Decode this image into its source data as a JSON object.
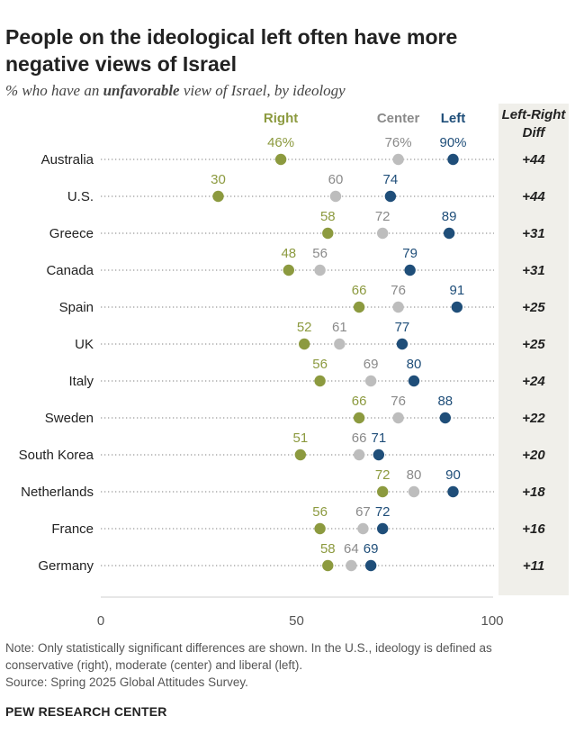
{
  "title": "People on the ideological left often have more negative views of Israel",
  "subtitle_prefix": "% who have an ",
  "subtitle_emph": "unfavorable",
  "subtitle_suffix": " view of Israel, by ideology",
  "diff_header_line1": "Left-Right",
  "diff_header_line2": "Diff",
  "note_line1": "Note: Only statistically significant differences are shown. In the U.S., ideology is defined as",
  "note_line2": "conservative (right), moderate (center) and liberal (left).",
  "source": "Source: Spring 2025 Global Attitudes Survey.",
  "logo": "PEW RESEARCH CENTER",
  "colors": {
    "right": "#8c9a3f",
    "center": "#bdbdbd",
    "left": "#1f4e79",
    "center_label": "#8a8a8a"
  },
  "chart_data": {
    "type": "scatter",
    "subtype": "dot-plot",
    "xlim": [
      0,
      100
    ],
    "xticks": [
      "0",
      "50",
      "100"
    ],
    "grid": false,
    "series": [
      {
        "name": "Right",
        "key": "right"
      },
      {
        "name": "Center",
        "key": "center"
      },
      {
        "name": "Left",
        "key": "left"
      }
    ],
    "rows": [
      {
        "country": "Australia",
        "right": 46,
        "center": 76,
        "left": 90,
        "right_label": "46%",
        "center_label": "76%",
        "left_label": "90%",
        "diff": "+44"
      },
      {
        "country": "U.S.",
        "right": 30,
        "center": 60,
        "left": 74,
        "right_label": "30",
        "center_label": "60",
        "left_label": "74",
        "diff": "+44"
      },
      {
        "country": "Greece",
        "right": 58,
        "center": 72,
        "left": 89,
        "right_label": "58",
        "center_label": "72",
        "left_label": "89",
        "diff": "+31"
      },
      {
        "country": "Canada",
        "right": 48,
        "center": 56,
        "left": 79,
        "right_label": "48",
        "center_label": "56",
        "left_label": "79",
        "diff": "+31"
      },
      {
        "country": "Spain",
        "right": 66,
        "center": 76,
        "left": 91,
        "right_label": "66",
        "center_label": "76",
        "left_label": "91",
        "diff": "+25"
      },
      {
        "country": "UK",
        "right": 52,
        "center": 61,
        "left": 77,
        "right_label": "52",
        "center_label": "61",
        "left_label": "77",
        "diff": "+25"
      },
      {
        "country": "Italy",
        "right": 56,
        "center": 69,
        "left": 80,
        "right_label": "56",
        "center_label": "69",
        "left_label": "80",
        "diff": "+24"
      },
      {
        "country": "Sweden",
        "right": 66,
        "center": 76,
        "left": 88,
        "right_label": "66",
        "center_label": "76",
        "left_label": "88",
        "diff": "+22"
      },
      {
        "country": "South Korea",
        "right": 51,
        "center": 66,
        "left": 71,
        "right_label": "51",
        "center_label": "66",
        "left_label": "71",
        "diff": "+20"
      },
      {
        "country": "Netherlands",
        "right": 72,
        "center": 80,
        "left": 90,
        "right_label": "72",
        "center_label": "80",
        "left_label": "90",
        "diff": "+18"
      },
      {
        "country": "France",
        "right": 56,
        "center": 67,
        "left": 72,
        "right_label": "56",
        "center_label": "67",
        "left_label": "72",
        "diff": "+16"
      },
      {
        "country": "Germany",
        "right": 58,
        "center": 64,
        "left": 69,
        "right_label": "58",
        "center_label": "64",
        "left_label": "69",
        "diff": "+11"
      }
    ]
  }
}
